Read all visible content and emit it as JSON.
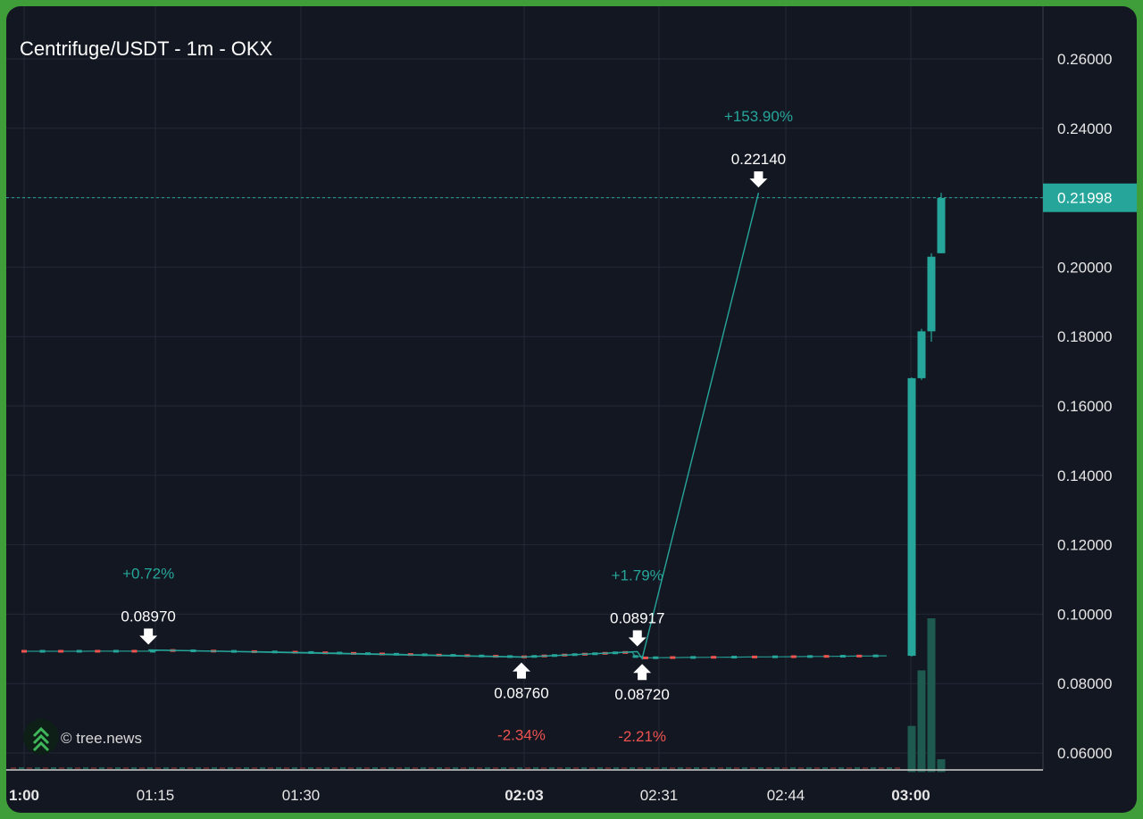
{
  "colors": {
    "frame": "#3f9e3a",
    "background": "#131722",
    "grid": "#232836",
    "up": "#26a69a",
    "down": "#ef5350",
    "text": "#e6e6e6",
    "volume_up": "#1e5a4f",
    "volume_down": "#5b2b30",
    "price_line": "#26a69a"
  },
  "chart_data": {
    "type": "candlestick",
    "title": "Centrifuge/USDT - 1m - OKX",
    "exchange": "OKX",
    "interval": "1m",
    "y_axis": {
      "ticks": [
        "0.26000",
        "0.24000",
        "0.22000",
        "0.20000",
        "0.18000",
        "0.16000",
        "0.14000",
        "0.12000",
        "0.10000",
        "0.08000",
        "0.06000"
      ],
      "tick_values": [
        0.26,
        0.24,
        0.22,
        0.2,
        0.18,
        0.16,
        0.14,
        0.12,
        0.1,
        0.08,
        0.06
      ],
      "range": [
        0.0545,
        0.271
      ]
    },
    "x_axis": {
      "ticks": [
        {
          "label": "1:00",
          "bold": true,
          "minutes": 60
        },
        {
          "label": "01:15",
          "bold": false,
          "minutes": 75
        },
        {
          "label": "01:30",
          "bold": false,
          "minutes": 90
        },
        {
          "label": "02:03",
          "bold": true,
          "minutes": 123
        },
        {
          "label": "02:31",
          "bold": false,
          "minutes": 151
        },
        {
          "label": "02:44",
          "bold": false,
          "minutes": 164
        },
        {
          "label": "03:00",
          "bold": true,
          "minutes": 180
        }
      ]
    },
    "current_price": {
      "label": "0.21998",
      "value": 0.21998
    },
    "candles": [
      {
        "t": "02:57",
        "o": 0.088,
        "h": 0.1682,
        "l": 0.0878,
        "c": 0.168,
        "v": 0.0678
      },
      {
        "t": "02:58",
        "o": 0.168,
        "h": 0.1822,
        "l": 0.1675,
        "c": 0.1815,
        "v": 0.0838
      },
      {
        "t": "02:59",
        "o": 0.1815,
        "h": 0.204,
        "l": 0.1785,
        "c": 0.203,
        "v": 0.0988
      },
      {
        "t": "03:00",
        "o": 0.204,
        "h": 0.2214,
        "l": 0.204,
        "c": 0.2199,
        "v": 0.0582
      }
    ],
    "annotations": [
      {
        "type": "high",
        "price": "0.08970",
        "value": 0.0897,
        "minutes": 74.2,
        "change": "+0.72%"
      },
      {
        "type": "low",
        "price": "0.08760",
        "value": 0.0876,
        "minutes": 122.6,
        "change": "-2.34%"
      },
      {
        "type": "high",
        "price": "0.08917",
        "value": 0.08917,
        "minutes": 146.5,
        "change": "+1.79%"
      },
      {
        "type": "low",
        "price": "0.08720",
        "value": 0.0872,
        "minutes": 147.5,
        "change": "-2.21%"
      },
      {
        "type": "high",
        "price": "0.22140",
        "value": 0.2214,
        "minutes": 161.2,
        "change": "+153.90%"
      }
    ]
  },
  "watermark": {
    "text": "© tree.news"
  }
}
